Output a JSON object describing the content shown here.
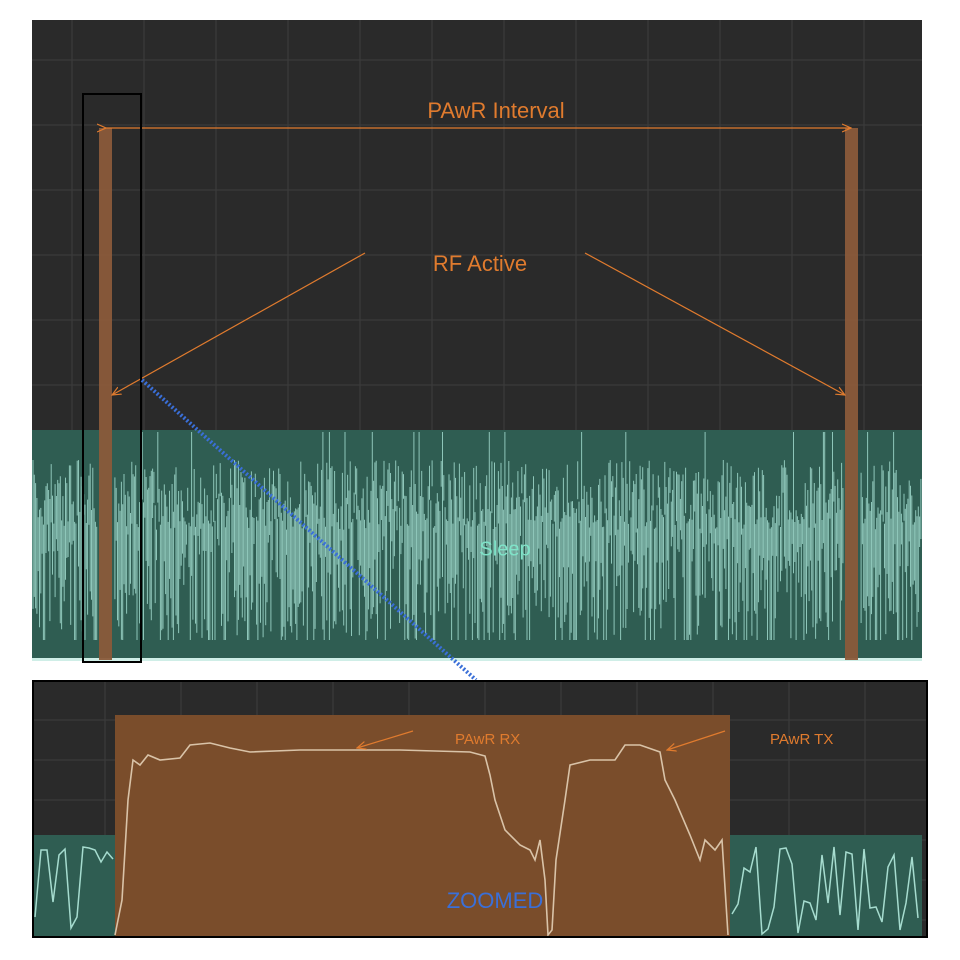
{
  "main": {
    "interval_label": "PAwR Interval",
    "rf_active_label": "RF Active",
    "sleep_label": "Sleep"
  },
  "zoom": {
    "rx_label": "PAwR RX",
    "tx_label": "PAwR TX",
    "zoomed_label": "ZOOMED"
  }
}
